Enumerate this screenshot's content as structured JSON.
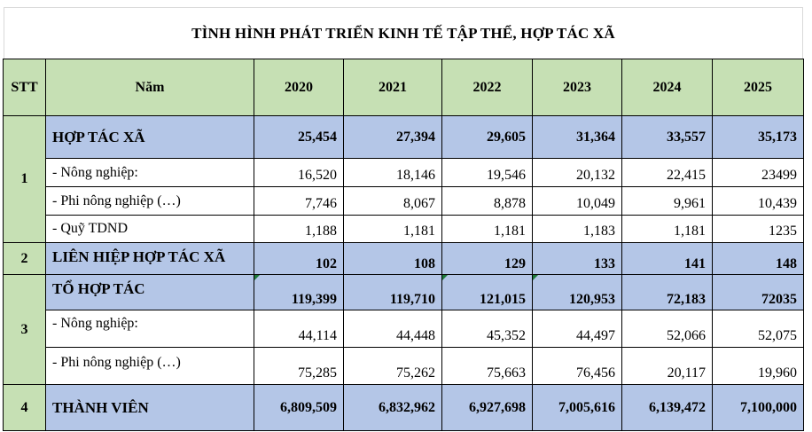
{
  "title": "TÌNH HÌNH PHÁT TRIỂN KINH TẾ TẬP THỂ, HỢP TÁC XÃ",
  "header": {
    "stt": "STT",
    "nam": "Năm",
    "years": [
      "2020",
      "2021",
      "2022",
      "2023",
      "2024",
      "2025"
    ]
  },
  "groups": [
    {
      "stt": "1",
      "label": "HỢP TÁC XÃ",
      "values": [
        "25,454",
        "27,394",
        "29,605",
        "31,364",
        "33,557",
        "35,173"
      ],
      "subs": [
        {
          "label": "- Nông nghiệp:",
          "values": [
            "16,520",
            "18,146",
            "19,546",
            "20,132",
            "22,415",
            "23499"
          ]
        },
        {
          "label": "- Phi nông nghiệp (…)",
          "values": [
            "7,746",
            "8,067",
            "8,878",
            "10,049",
            "9,961",
            "10,439"
          ]
        },
        {
          "label": "- Quỹ TDND",
          "values": [
            "1,188",
            "1,181",
            "1,181",
            "1,183",
            "1,181",
            "1235"
          ]
        }
      ]
    },
    {
      "stt": "2",
      "label": "LIÊN HIỆP HỢP TÁC XÃ",
      "values": [
        "102",
        "108",
        "129",
        "133",
        "141",
        "148"
      ],
      "subs": []
    },
    {
      "stt": "3",
      "label": "TỔ HỢP TÁC",
      "values": [
        "119,399",
        "119,710",
        "121,015",
        "120,953",
        "72,183",
        "72035"
      ],
      "subs": [
        {
          "label": "- Nông nghiệp:",
          "values": [
            "44,114",
            "44,448",
            "45,352",
            "44,497",
            "52,066",
            "52,075"
          ]
        },
        {
          "label": "- Phi nông nghiệp (…)",
          "values": [
            "75,285",
            "75,262",
            "75,663",
            "76,456",
            "20,117",
            "19,960"
          ]
        }
      ]
    },
    {
      "stt": "4",
      "label": "THÀNH VIÊN",
      "values": [
        "6,809,509",
        "6,832,962",
        "6,927,698",
        "7,005,616",
        "6,139,472",
        "7,100,000"
      ],
      "subs": []
    }
  ]
}
